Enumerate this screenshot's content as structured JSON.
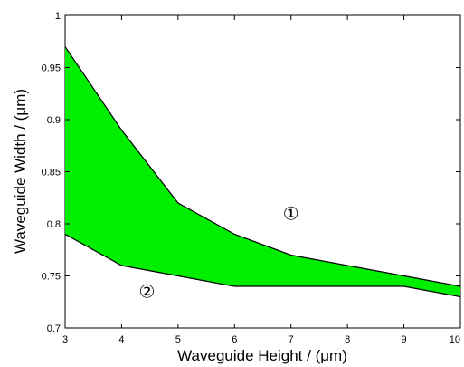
{
  "chart_data": {
    "type": "area",
    "xlabel": "Waveguide Height / (μm)",
    "ylabel": "Waveguide Width / (μm)",
    "xlim": [
      3,
      10
    ],
    "ylim": [
      0.7,
      1
    ],
    "xticks": [
      "3",
      "4",
      "5",
      "6",
      "7",
      "8",
      "9",
      "10"
    ],
    "yticks": [
      "0.7",
      "0.75",
      "0.8",
      "0.85",
      "0.9",
      "0.95",
      "1"
    ],
    "grid": false,
    "fill_color": "#00ee00",
    "line_color": "#000000",
    "series": [
      {
        "x": [
          3,
          4,
          5,
          6,
          7,
          8,
          9,
          10
        ],
        "values": [
          0.97,
          0.89,
          0.82,
          0.79,
          0.77,
          0.76,
          0.75,
          0.74
        ]
      },
      {
        "x": [
          3,
          4,
          5,
          6,
          7,
          8,
          9,
          10
        ],
        "values": [
          0.79,
          0.76,
          0.75,
          0.74,
          0.74,
          0.74,
          0.74,
          0.73
        ]
      }
    ],
    "annotations": [
      {
        "text": "①",
        "x": 7.0,
        "y": 0.804
      },
      {
        "text": "②",
        "x": 4.45,
        "y": 0.729
      }
    ]
  }
}
